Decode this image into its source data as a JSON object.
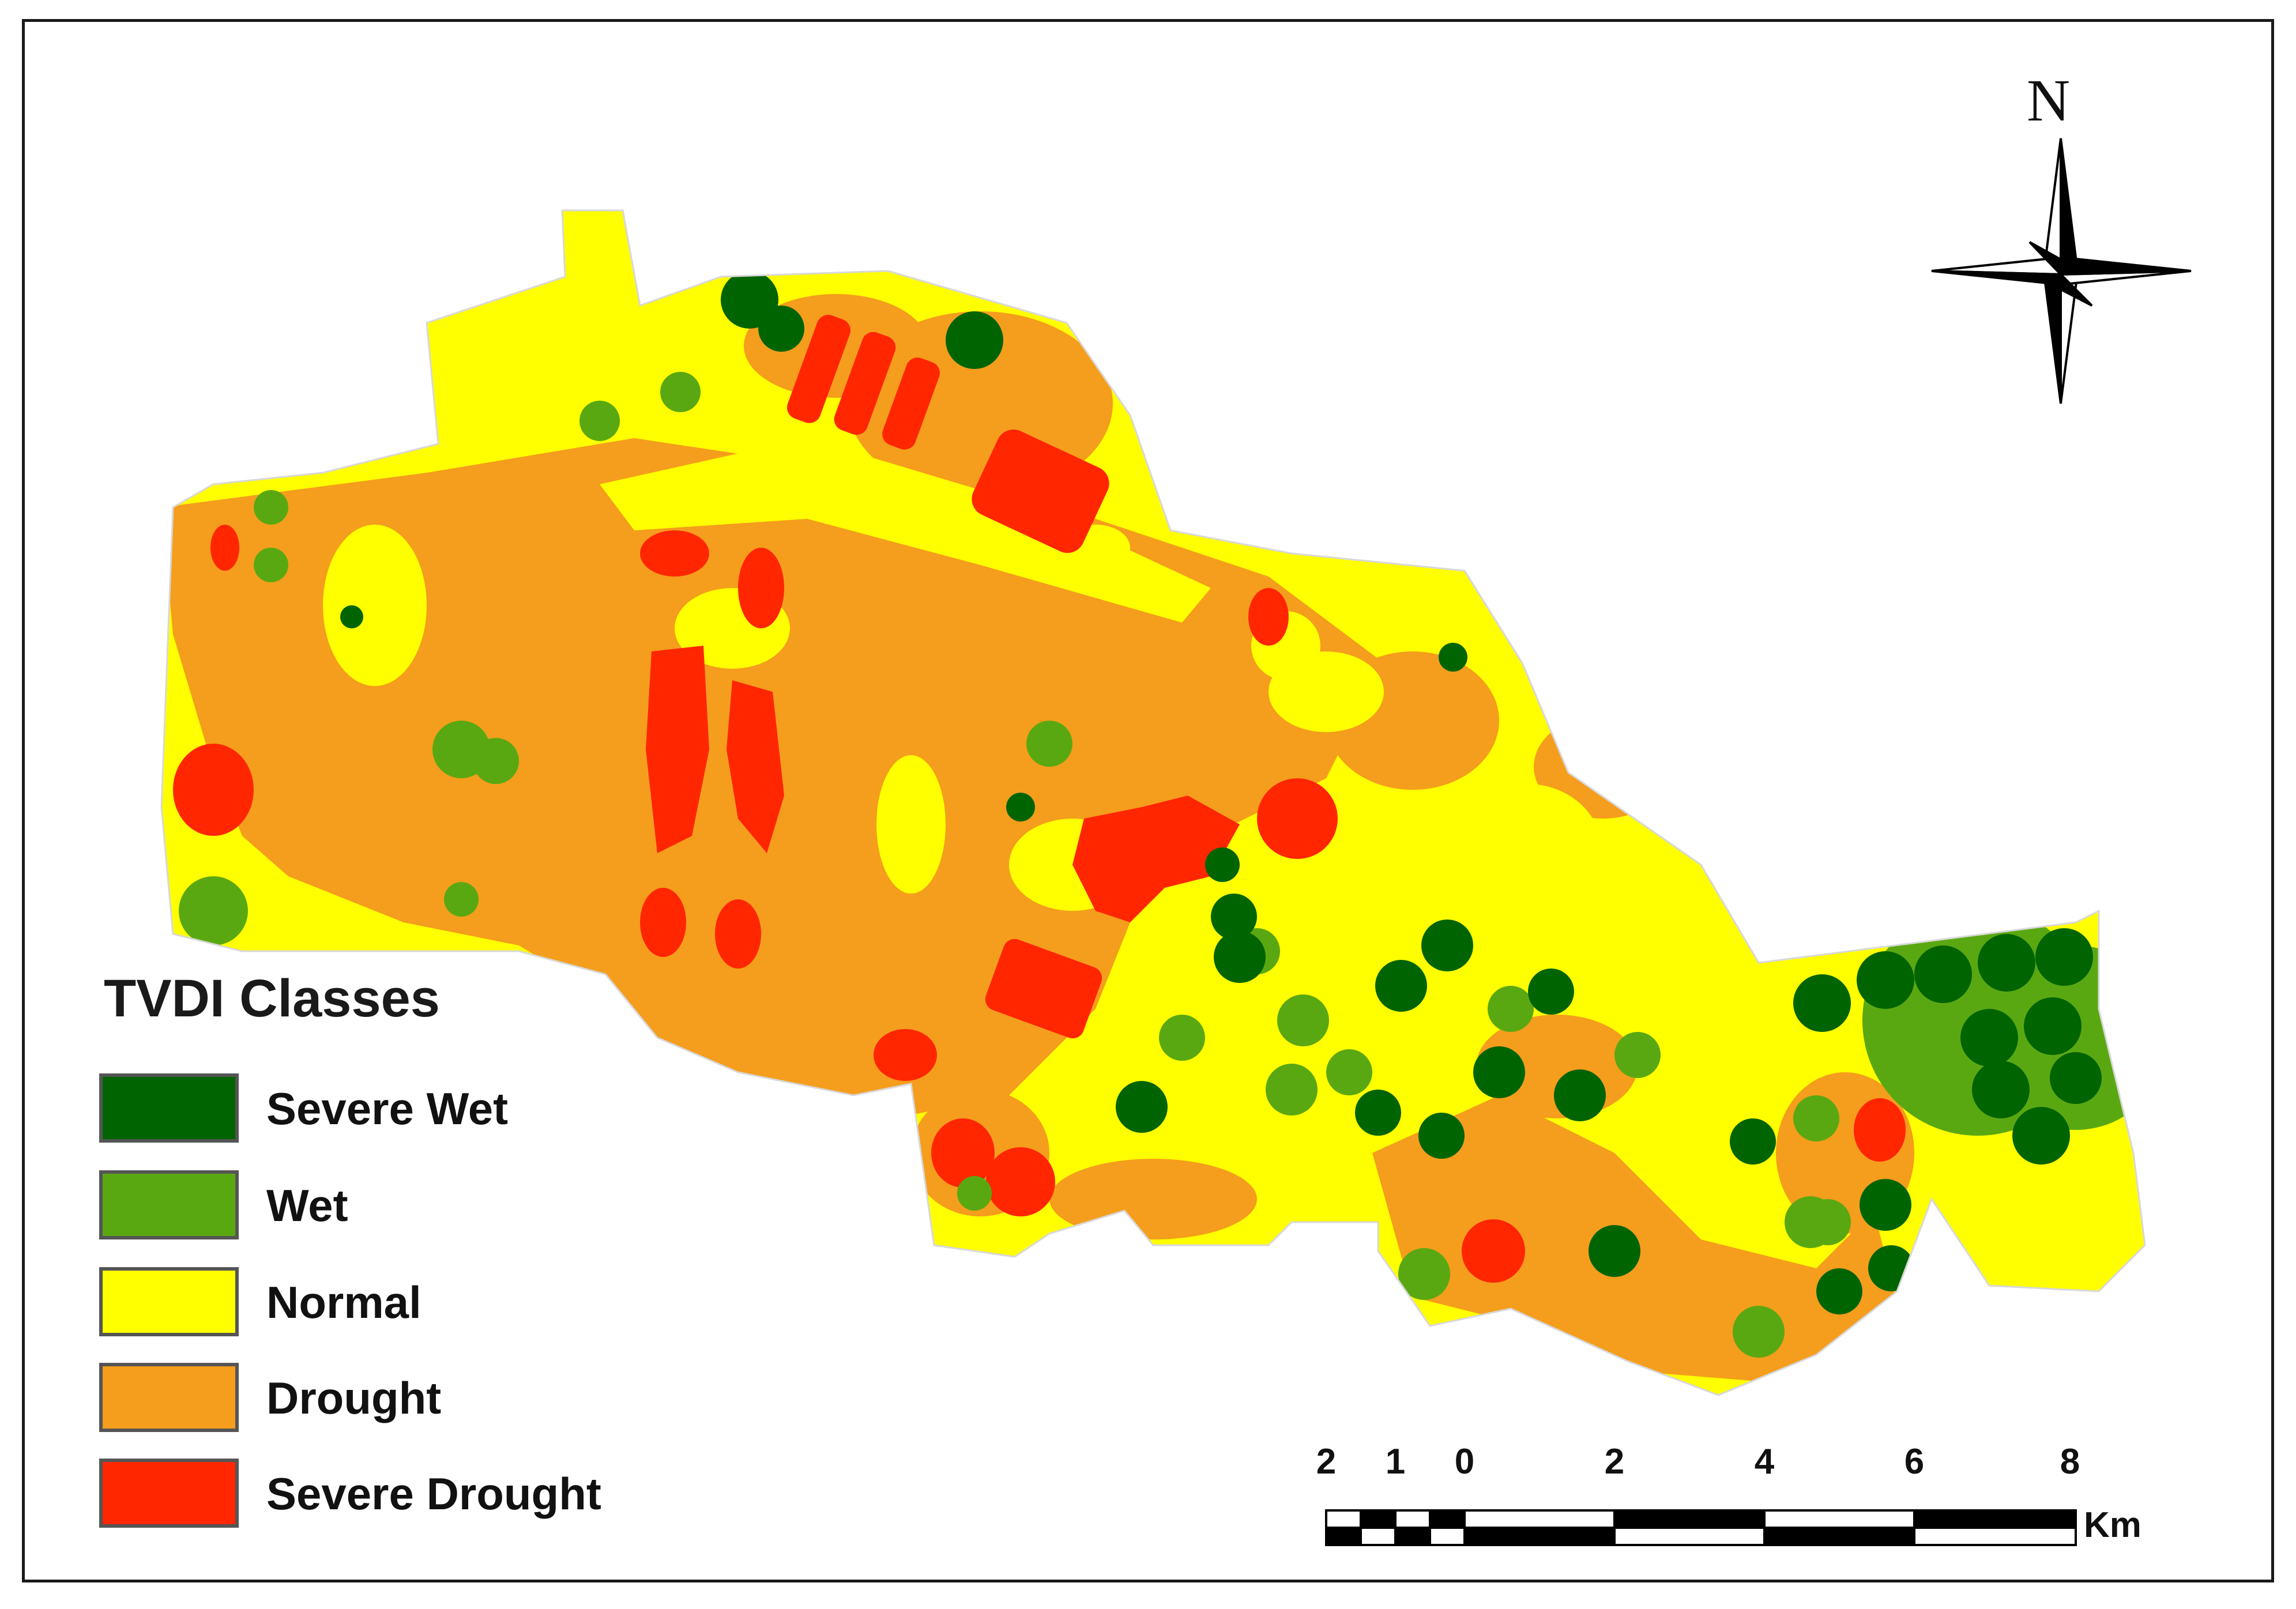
{
  "legend": {
    "title": "TVDI Classes",
    "items": [
      {
        "label": "Severe Wet",
        "color": "#006400"
      },
      {
        "label": "Wet",
        "color": "#5aa811"
      },
      {
        "label": "Normal",
        "color": "#ffff00"
      },
      {
        "label": "Drought",
        "color": "#f59d1c"
      },
      {
        "label": "Severe Drought",
        "color": "#ff2600"
      }
    ]
  },
  "north_arrow": {
    "label": "N"
  },
  "scale_bar": {
    "ticks": [
      "2",
      "1",
      "0",
      "2",
      "4",
      "6",
      "8"
    ],
    "unit": "Km"
  }
}
